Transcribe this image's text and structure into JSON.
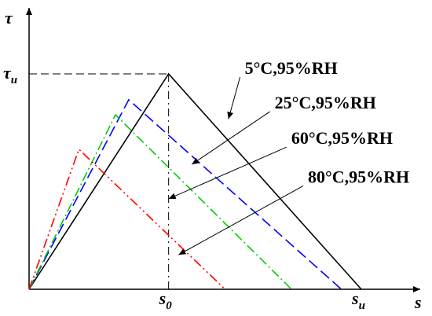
{
  "chart_data": {
    "type": "line",
    "title": "",
    "xlabel": "s",
    "ylabel": "τ",
    "xlim": [
      0,
      1.1
    ],
    "ylim": [
      0,
      1.05
    ],
    "ticks": {
      "x": [
        {
          "value": 0.42,
          "label": "s",
          "sub": "0"
        },
        {
          "value": 1.0,
          "label": "s",
          "sub": "u"
        }
      ],
      "y": [
        {
          "value": 1.0,
          "label": "τ",
          "sub": "u"
        }
      ]
    },
    "grid": false,
    "series": [
      {
        "name": "5°C,95%RH",
        "color": "#000000",
        "dash": "solid",
        "x": [
          0,
          0.42,
          1.0
        ],
        "y": [
          0,
          1.0,
          0
        ]
      },
      {
        "name": "25°C,95%RH",
        "color": "#0000ff",
        "dash": "dash",
        "x": [
          0,
          0.3,
          0.94
        ],
        "y": [
          0,
          0.88,
          0
        ]
      },
      {
        "name": "60°C,95%RH",
        "color": "#00cc00",
        "dash": "dash-dot",
        "x": [
          0,
          0.26,
          0.79
        ],
        "y": [
          0,
          0.81,
          0
        ]
      },
      {
        "name": "80°C,95%RH",
        "color": "#ff0000",
        "dash": "dash-dot-dot",
        "x": [
          0,
          0.15,
          0.59
        ],
        "y": [
          0,
          0.65,
          0
        ]
      }
    ],
    "annotations": [
      {
        "series": 0,
        "text": "5°C,95%RH",
        "point": [
          0.6,
          0.79
        ],
        "label_at": [
          0.635,
          0.985
        ]
      },
      {
        "series": 1,
        "text": "25°C,95%RH",
        "point": [
          0.49,
          0.58
        ],
        "label_at": [
          0.725,
          0.825
        ]
      },
      {
        "series": 2,
        "text": "60°C,95%RH",
        "point": [
          0.42,
          0.42
        ],
        "label_at": [
          0.775,
          0.66
        ]
      },
      {
        "series": 3,
        "text": "80°C,95%RH",
        "point": [
          0.45,
          0.16
        ],
        "label_at": [
          0.825,
          0.48
        ]
      }
    ]
  }
}
